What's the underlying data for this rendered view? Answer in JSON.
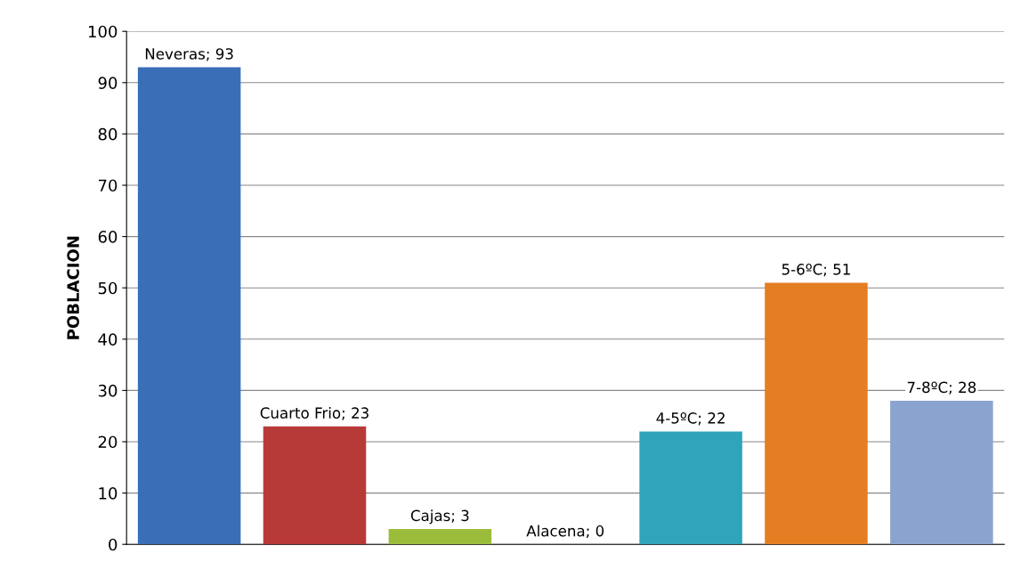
{
  "chart_data": {
    "type": "bar",
    "ylabel": "POBLACION",
    "categories": [
      null,
      null,
      null,
      null,
      null,
      null,
      null
    ],
    "values": [
      93,
      23,
      3,
      0,
      22,
      51,
      28
    ],
    "colors": [
      "#3a6fb8",
      "#b83a38",
      "#9bbb3b",
      "#7d60a0",
      "#2fa4bb",
      "#e57e22",
      "#8ba3cf"
    ],
    "value_labels": [
      "Neveras; 93",
      "Cuarto Frio; 23",
      "Cajas; 3",
      "Alacena; 0",
      "4-5ºC; 22",
      "5-6ºC; 51",
      "7-8ºC; 28"
    ],
    "ylim": [
      0,
      100
    ],
    "yticks": [
      0,
      10,
      20,
      30,
      40,
      50,
      60,
      70,
      80,
      90,
      100
    ],
    "grid": "y"
  }
}
